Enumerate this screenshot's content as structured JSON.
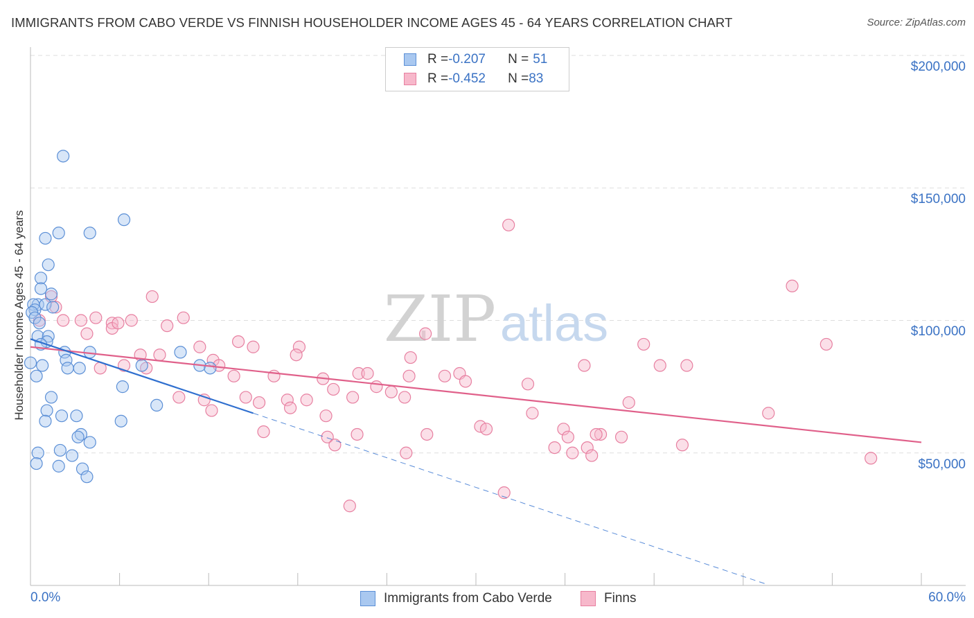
{
  "title": "IMMIGRANTS FROM CABO VERDE VS FINNISH HOUSEHOLDER INCOME AGES 45 - 64 YEARS CORRELATION CHART",
  "source": "Source: ZipAtlas.com",
  "watermark": {
    "zip": "ZIP",
    "atlas": "atlas"
  },
  "legend_top": [
    {
      "r_label": "R = ",
      "r_value": "-0.207",
      "n_label": "N = ",
      "n_value": "51"
    },
    {
      "r_label": "R = ",
      "r_value": "-0.452",
      "n_label": "N = ",
      "n_value": "83"
    }
  ],
  "legend_bottom": [
    "Immigrants from Cabo Verde",
    "Finns"
  ],
  "colors": {
    "blue_fill": "#a9c8f0",
    "blue_stroke": "#5b8fd6",
    "blue_line": "#2f6fcf",
    "pink_fill": "#f7b8cb",
    "pink_stroke": "#e77fa0",
    "pink_line": "#e0608a",
    "grid": "#dddddd",
    "axis_text": "#3a72c4"
  },
  "chart_data": {
    "type": "scatter",
    "title": "IMMIGRANTS FROM CABO VERDE VS FINNISH HOUSEHOLDER INCOME AGES 45 - 64 YEARS CORRELATION CHART",
    "xlabel": "",
    "ylabel": "Householder Income Ages 45 - 64 years",
    "xlim": [
      0,
      60
    ],
    "ylim": [
      0,
      200000
    ],
    "x_tick_labels": [
      "0.0%",
      "60.0%"
    ],
    "y_ticks": [
      50000,
      100000,
      150000,
      200000
    ],
    "y_tick_labels": [
      "$50,000",
      "$100,000",
      "$150,000",
      "$200,000"
    ],
    "series": [
      {
        "name": "Immigrants from Cabo Verde",
        "r": -0.207,
        "n": 51,
        "trend": {
          "x0": 0.0,
          "y0": 93000,
          "x1": 15.0,
          "y1": 65000,
          "dash_to_x": 49.5
        },
        "points": [
          [
            2.2,
            162000
          ],
          [
            6.3,
            138000
          ],
          [
            1.0,
            131000
          ],
          [
            1.9,
            133000
          ],
          [
            4.0,
            133000
          ],
          [
            1.2,
            121000
          ],
          [
            0.7,
            116000
          ],
          [
            0.7,
            112000
          ],
          [
            1.4,
            110000
          ],
          [
            0.5,
            106000
          ],
          [
            1.0,
            106000
          ],
          [
            1.5,
            105000
          ],
          [
            0.2,
            106000
          ],
          [
            0.3,
            104000
          ],
          [
            0.1,
            103000
          ],
          [
            0.3,
            101000
          ],
          [
            0.6,
            99000
          ],
          [
            0.5,
            94000
          ],
          [
            1.2,
            94000
          ],
          [
            1.1,
            92000
          ],
          [
            0.7,
            91000
          ],
          [
            2.3,
            88000
          ],
          [
            4.0,
            88000
          ],
          [
            10.1,
            88000
          ],
          [
            2.4,
            85000
          ],
          [
            0.0,
            84000
          ],
          [
            0.8,
            83000
          ],
          [
            3.3,
            82000
          ],
          [
            2.5,
            82000
          ],
          [
            7.5,
            83000
          ],
          [
            11.4,
            83000
          ],
          [
            12.1,
            82000
          ],
          [
            0.4,
            79000
          ],
          [
            6.2,
            75000
          ],
          [
            1.4,
            71000
          ],
          [
            8.5,
            68000
          ],
          [
            1.1,
            66000
          ],
          [
            3.1,
            64000
          ],
          [
            2.1,
            64000
          ],
          [
            6.1,
            62000
          ],
          [
            1.0,
            62000
          ],
          [
            3.4,
            57000
          ],
          [
            3.2,
            56000
          ],
          [
            4.0,
            54000
          ],
          [
            2.0,
            51000
          ],
          [
            2.8,
            49000
          ],
          [
            1.9,
            45000
          ],
          [
            3.5,
            44000
          ],
          [
            3.8,
            41000
          ],
          [
            0.5,
            50000
          ],
          [
            0.4,
            46000
          ]
        ]
      },
      {
        "name": "Finns",
        "r": -0.452,
        "n": 83,
        "trend": {
          "x0": 0.0,
          "y0": 90000,
          "x1": 60.0,
          "y1": 54000
        },
        "points": [
          [
            32.2,
            136000
          ],
          [
            51.3,
            113000
          ],
          [
            8.2,
            109000
          ],
          [
            1.4,
            109000
          ],
          [
            1.7,
            105000
          ],
          [
            0.6,
            100000
          ],
          [
            2.2,
            100000
          ],
          [
            3.4,
            100000
          ],
          [
            5.5,
            99000
          ],
          [
            5.5,
            97000
          ],
          [
            4.4,
            101000
          ],
          [
            6.8,
            100000
          ],
          [
            10.3,
            101000
          ],
          [
            9.2,
            98000
          ],
          [
            5.9,
            99000
          ],
          [
            3.8,
            95000
          ],
          [
            26.6,
            95000
          ],
          [
            14.0,
            92000
          ],
          [
            15.0,
            90000
          ],
          [
            11.4,
            90000
          ],
          [
            18.1,
            90000
          ],
          [
            41.3,
            91000
          ],
          [
            53.6,
            91000
          ],
          [
            7.4,
            87000
          ],
          [
            8.7,
            87000
          ],
          [
            17.9,
            87000
          ],
          [
            12.3,
            85000
          ],
          [
            25.6,
            86000
          ],
          [
            6.3,
            83000
          ],
          [
            7.8,
            82000
          ],
          [
            12.7,
            83000
          ],
          [
            4.7,
            82000
          ],
          [
            37.3,
            83000
          ],
          [
            42.4,
            83000
          ],
          [
            44.2,
            83000
          ],
          [
            13.7,
            79000
          ],
          [
            16.4,
            79000
          ],
          [
            22.1,
            80000
          ],
          [
            25.5,
            79000
          ],
          [
            22.7,
            80000
          ],
          [
            27.9,
            79000
          ],
          [
            28.9,
            80000
          ],
          [
            29.3,
            77000
          ],
          [
            19.7,
            78000
          ],
          [
            20.4,
            74000
          ],
          [
            33.5,
            76000
          ],
          [
            24.3,
            73000
          ],
          [
            23.3,
            75000
          ],
          [
            10.0,
            71000
          ],
          [
            14.5,
            71000
          ],
          [
            11.7,
            70000
          ],
          [
            17.3,
            70000
          ],
          [
            18.6,
            70000
          ],
          [
            21.7,
            71000
          ],
          [
            25.2,
            71000
          ],
          [
            40.3,
            69000
          ],
          [
            15.4,
            69000
          ],
          [
            12.2,
            66000
          ],
          [
            17.5,
            67000
          ],
          [
            33.8,
            65000
          ],
          [
            49.7,
            65000
          ],
          [
            19.9,
            64000
          ],
          [
            30.3,
            60000
          ],
          [
            30.7,
            59000
          ],
          [
            35.9,
            59000
          ],
          [
            22.0,
            57000
          ],
          [
            15.7,
            58000
          ],
          [
            26.7,
            57000
          ],
          [
            38.4,
            57000
          ],
          [
            38.1,
            57000
          ],
          [
            39.8,
            56000
          ],
          [
            20.0,
            56000
          ],
          [
            36.2,
            56000
          ],
          [
            20.5,
            53000
          ],
          [
            35.3,
            52000
          ],
          [
            36.5,
            50000
          ],
          [
            37.5,
            52000
          ],
          [
            37.8,
            49000
          ],
          [
            43.9,
            53000
          ],
          [
            25.3,
            50000
          ],
          [
            56.6,
            48000
          ],
          [
            31.9,
            35000
          ],
          [
            21.5,
            30000
          ]
        ]
      }
    ]
  }
}
